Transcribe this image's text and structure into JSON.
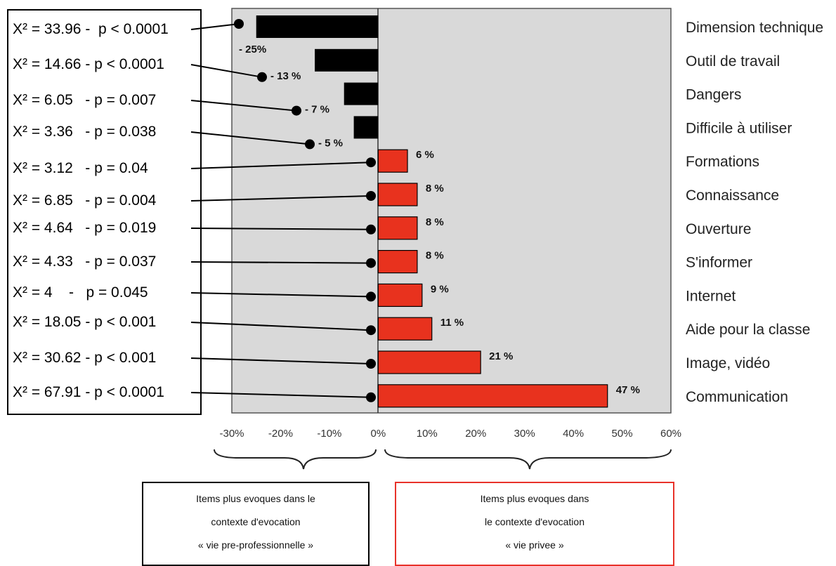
{
  "chart_data": {
    "type": "bar",
    "orientation": "horizontal",
    "categories": [
      "Dimension technique",
      "Outil de travail",
      "Dangers",
      "Difficile à utiliser",
      "Formations",
      "Connaissance",
      "Ouverture",
      "S'informer",
      "Internet",
      "Aide pour la classe",
      "Image, vidéo",
      "Communication"
    ],
    "values": [
      -25,
      -13,
      -7,
      -5,
      6,
      8,
      8,
      8,
      9,
      11,
      21,
      47
    ],
    "value_labels": [
      "- 25%",
      "- 13 %",
      "- 7 %",
      "- 5 %",
      "6 %",
      "8 %",
      "8 %",
      "8 %",
      "9 %",
      "11 %",
      "21 %",
      "47 %"
    ],
    "stat_labels": [
      "X² = 33.96 -  p < 0.0001",
      "X² = 14.66 - p < 0.0001",
      "X² = 6.05   - p = 0.007",
      "X² = 3.36   - p = 0.038",
      "X² = 3.12   - p = 0.04",
      "X² = 6.85   - p = 0.004",
      "X² = 4.64   - p = 0.019",
      "X² = 4.33   - p = 0.037",
      "X² = 4    -   p = 0.045",
      "X² = 18.05 - p < 0.001",
      "X² = 30.62 - p < 0.001",
      "X² = 67.91 - p < 0.0001"
    ],
    "xlim": [
      -30,
      60
    ],
    "xticks": [
      -30,
      -20,
      -10,
      0,
      10,
      20,
      30,
      40,
      50,
      60
    ],
    "xtick_labels": [
      "-30%",
      "-20%",
      "-10%",
      "0%",
      "10%",
      "20%",
      "30%",
      "40%",
      "50%",
      "60%"
    ],
    "grid": false,
    "colors": {
      "negative": "#000000",
      "positive": "#e8321e",
      "plot_background": "#d9d9d9",
      "right_caption_border": "#e8322a"
    }
  },
  "captions": {
    "left": [
      "Items plus evoques dans le",
      "contexte d'evocation",
      "« vie pre-professionnelle »"
    ],
    "right": [
      "Items plus evoques dans",
      "le contexte d'evocation",
      "« vie privee »"
    ]
  }
}
